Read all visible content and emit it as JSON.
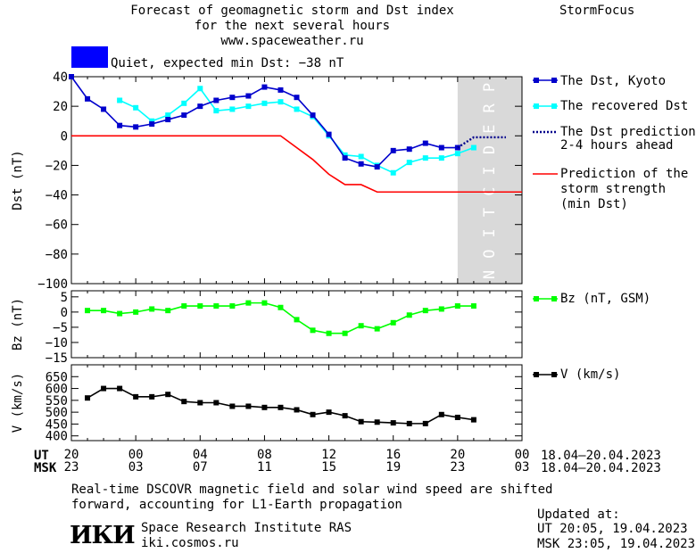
{
  "header": {
    "title_line1": "Forecast of geomagnetic storm and Dst index",
    "title_line2": "for the next several hours",
    "title_line3": "www.spaceweather.ru",
    "brand": "StormFocus"
  },
  "status": {
    "color": "#0000ff",
    "text": "Quiet, expected min Dst: −38 nT"
  },
  "colors": {
    "dst": "#0000cc",
    "recovered": "#00ffff",
    "prediction": "#00008b",
    "storm": "#ff0000",
    "bz": "#00ff00",
    "v": "#000000",
    "prediction_band": "#d9d9d9"
  },
  "legend": {
    "dst": "The Dst, Kyoto",
    "recovered": "The recovered Dst",
    "prediction_line1": "The Dst prediction",
    "prediction_line2": "2-4 hours ahead",
    "storm_line1": "Prediction of the",
    "storm_line2": "storm strength",
    "storm_line3": "(min Dst)",
    "bz": "Bz (nT, GSM)",
    "v": "V (km/s)"
  },
  "band_label": "PREDICTION",
  "time_axis": {
    "ut_label": "UT",
    "msk_label": "MSK",
    "ut_ticks": [
      "20",
      "00",
      "04",
      "08",
      "12",
      "16",
      "20",
      "00"
    ],
    "msk_ticks": [
      "23",
      "03",
      "07",
      "11",
      "15",
      "19",
      "23",
      "03"
    ],
    "date_range_ut": "18.04–20.04.2023",
    "date_range_msk": "18.04–20.04.2023"
  },
  "footer": {
    "note_line1": "Real-time DSCOVR magnetic field and solar wind speed are shifted",
    "note_line2": "forward, accounting for L1-Earth propagation",
    "logo": "ИКИ",
    "institute": "Space Research Institute RAS",
    "site": "iki.cosmos.ru",
    "updated_label": "Updated at:",
    "updated_ut": "UT  20:05, 19.04.2023",
    "updated_msk": "MSK 23:05, 19.04.2023"
  },
  "chart_data": [
    {
      "type": "line",
      "ylabel": "Dst (nT)",
      "x_unit": "hours (UT)",
      "xlim": [
        20,
        48
      ],
      "ylim": [
        -100,
        40
      ],
      "yticks": [
        40,
        20,
        0,
        -20,
        -40,
        -60,
        -80,
        -100
      ],
      "prediction_window": [
        44,
        48
      ],
      "series": [
        {
          "name": "The Dst, Kyoto",
          "x": [
            20,
            21,
            22,
            23,
            24,
            25,
            26,
            27,
            28,
            29,
            30,
            31,
            32,
            33,
            34,
            35,
            36,
            37,
            38,
            39,
            40,
            41,
            42,
            43,
            44
          ],
          "values": [
            40,
            25,
            18,
            7,
            6,
            8,
            11,
            14,
            20,
            24,
            26,
            27,
            33,
            31,
            26,
            14,
            1,
            -15,
            -19,
            -21,
            -10,
            -9,
            -5,
            -8,
            -8
          ]
        },
        {
          "name": "The recovered Dst",
          "x": [
            23,
            24,
            25,
            26,
            27,
            28,
            29,
            30,
            31,
            32,
            33,
            34,
            35,
            36,
            37,
            38,
            39,
            40,
            41,
            42,
            43,
            44,
            45
          ],
          "values": [
            24,
            19,
            10,
            14,
            22,
            32,
            17,
            18,
            20,
            22,
            23,
            18,
            13,
            0,
            -13,
            -14,
            -20,
            -25,
            -18,
            -15,
            -15,
            -12,
            -8
          ]
        },
        {
          "name": "The Dst prediction 2-4 hours ahead",
          "x": [
            44,
            45,
            46,
            47
          ],
          "values": [
            -8,
            -1,
            -1,
            -1
          ]
        },
        {
          "name": "Prediction of the storm strength (min Dst)",
          "x": [
            20,
            33,
            35,
            36,
            37,
            38,
            39,
            48
          ],
          "values": [
            0,
            0,
            -16,
            -26,
            -33,
            -33,
            -38,
            -38
          ]
        }
      ]
    },
    {
      "type": "line",
      "ylabel": "Bz (nT)",
      "xlim": [
        20,
        48
      ],
      "ylim": [
        -15,
        7
      ],
      "yticks": [
        5,
        0,
        -5,
        -10,
        -15
      ],
      "series": [
        {
          "name": "Bz (nT, GSM)",
          "x": [
            21,
            22,
            23,
            24,
            25,
            26,
            27,
            28,
            29,
            30,
            31,
            32,
            33,
            34,
            35,
            36,
            37,
            38,
            39,
            40,
            41,
            42,
            43,
            44,
            45
          ],
          "values": [
            0.5,
            0.5,
            -0.5,
            0,
            1,
            0.5,
            2,
            2,
            2,
            2,
            3,
            3,
            1.5,
            -2.5,
            -6,
            -7,
            -7,
            -4.5,
            -5.5,
            -3.5,
            -1,
            0.5,
            1,
            2,
            2
          ]
        }
      ]
    },
    {
      "type": "line",
      "ylabel": "V (km/s)",
      "xlim": [
        20,
        48
      ],
      "ylim": [
        380,
        700
      ],
      "yticks": [
        650,
        600,
        550,
        500,
        450,
        400
      ],
      "series": [
        {
          "name": "V (km/s)",
          "x": [
            21,
            22,
            23,
            24,
            25,
            26,
            27,
            28,
            29,
            30,
            31,
            32,
            33,
            34,
            35,
            36,
            37,
            38,
            39,
            40,
            41,
            42,
            43,
            44,
            45
          ],
          "values": [
            560,
            600,
            600,
            565,
            565,
            575,
            545,
            540,
            540,
            525,
            525,
            520,
            520,
            510,
            490,
            500,
            485,
            460,
            458,
            455,
            452,
            452,
            490,
            478,
            468
          ]
        }
      ]
    }
  ]
}
